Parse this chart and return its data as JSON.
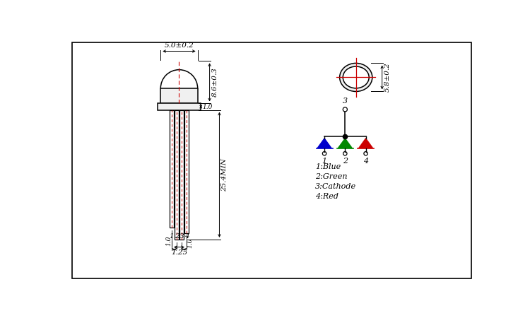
{
  "bg_color": "#ffffff",
  "line_color": "#000000",
  "red_color": "#cc0000",
  "blue_color": "#0000cc",
  "green_color": "#008800",
  "led_fill": "#f0f0f0",
  "dim_5_0": "5.0±0.2",
  "dim_8_6": "8.6±0.3",
  "dim_1_0_flange": "1.0",
  "dim_25_4": "25.4MIN",
  "dim_1_0_left": "1.0",
  "dim_1_0_right": "1.0",
  "dim_1_25": "1.25",
  "dim_5_8": "5.8±0.2",
  "label_1": "1",
  "label_2": "2",
  "label_3": "3",
  "label_4": "4",
  "legend_1": "1:Blue",
  "legend_2": "2:Green",
  "legend_3": "3:Cathode",
  "legend_4": "4:Red"
}
